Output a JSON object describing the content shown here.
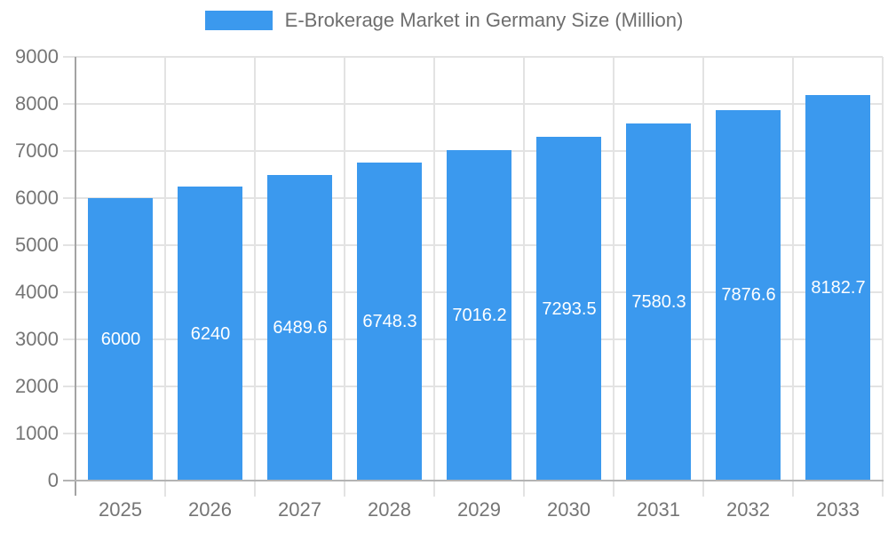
{
  "legend": {
    "label": "E-Brokerage Market in Germany Size (Million)"
  },
  "colors": {
    "bar": "#3b99ee",
    "grid": "#e3e3e3",
    "y_axis_line": "#a3a3a3",
    "x_axis_line": "#b3b3b3",
    "tick_label": "#757575",
    "legend_label": "#6e6e6e",
    "bar_label": "#ffffff",
    "background": "#ffffff"
  },
  "chart_data": {
    "type": "bar",
    "title": "E-Brokerage Market in Germany Size (Million)",
    "xlabel": "",
    "ylabel": "",
    "categories": [
      "2025",
      "2026",
      "2027",
      "2028",
      "2029",
      "2030",
      "2031",
      "2032",
      "2033"
    ],
    "series": [
      {
        "name": "E-Brokerage Market in Germany Size (Million)",
        "values": [
          6000,
          6240,
          6489.6,
          6748.3,
          7016.2,
          7293.5,
          7580.3,
          7876.6,
          8182.7
        ]
      }
    ],
    "bar_labels": [
      "6000",
      "6240",
      "6489.6",
      "6748.3",
      "7016.2",
      "7293.5",
      "7580.3",
      "7876.6",
      "8182.7"
    ],
    "bar_label_position": "inside-center",
    "ylim": [
      0,
      9000
    ],
    "yticks": [
      "0",
      "1000",
      "2000",
      "3000",
      "4000",
      "5000",
      "6000",
      "7000",
      "8000",
      "9000"
    ],
    "grid": true,
    "legend_position": "top-center"
  }
}
